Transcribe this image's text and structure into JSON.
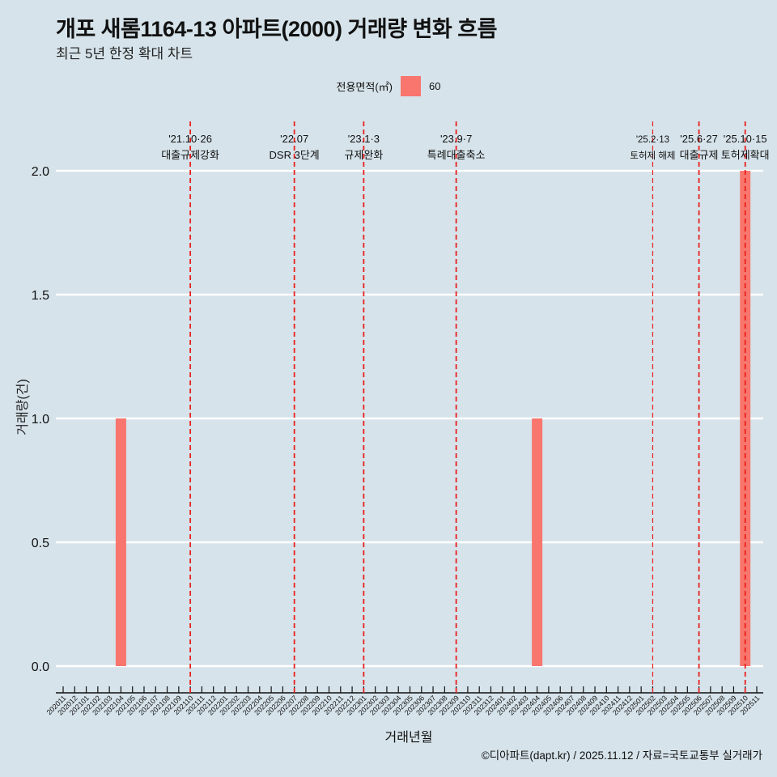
{
  "title": "개포 새롬1164-13 아파트(2000) 거래량 변화 흐름",
  "subtitle": "최근 5년 한정 확대 차트",
  "legend": {
    "title": "전용면적(㎡)",
    "items": [
      {
        "label": "60",
        "color": "#f8766d"
      }
    ]
  },
  "caption": "©디아파트(dapt.kr) / 2025.11.12 / 자료=국토교통부 실거래가",
  "colors": {
    "background": "#d6e3ea",
    "bar": "#f8766d",
    "gridline": "#ffffff",
    "event_line": "#e8201e"
  },
  "chart_data": {
    "type": "bar",
    "title": "개포 새롬1164-13 아파트(2000) 거래량 변화 흐름",
    "subtitle": "최근 5년 한정 확대 차트",
    "xlabel": "거래년월",
    "ylabel": "거래량(건)",
    "ylim": [
      0,
      2.0
    ],
    "yticks": [
      0.0,
      0.5,
      1.0,
      1.5,
      2.0
    ],
    "ytick_labels": [
      "0.0",
      "0.5",
      "1.0",
      "1.5",
      "2.0"
    ],
    "grid": "horizontal",
    "legend_position": "top",
    "categories": [
      "202011",
      "202012",
      "202101",
      "202102",
      "202103",
      "202104",
      "202105",
      "202106",
      "202107",
      "202108",
      "202109",
      "202110",
      "202111",
      "202112",
      "202201",
      "202202",
      "202203",
      "202204",
      "202205",
      "202206",
      "202207",
      "202208",
      "202209",
      "202210",
      "202211",
      "202212",
      "202301",
      "202302",
      "202303",
      "202304",
      "202305",
      "202306",
      "202307",
      "202308",
      "202309",
      "202310",
      "202311",
      "202312",
      "202401",
      "202402",
      "202403",
      "202404",
      "202405",
      "202406",
      "202407",
      "202408",
      "202409",
      "202410",
      "202411",
      "202412",
      "202501",
      "202502",
      "202503",
      "202504",
      "202505",
      "202506",
      "202507",
      "202508",
      "202509",
      "202510",
      "202511"
    ],
    "series": [
      {
        "name": "60",
        "color": "#f8766d",
        "values": [
          0,
          0,
          0,
          0,
          0,
          1,
          0,
          0,
          0,
          0,
          0,
          0,
          0,
          0,
          0,
          0,
          0,
          0,
          0,
          0,
          0,
          0,
          0,
          0,
          0,
          0,
          0,
          0,
          0,
          0,
          0,
          0,
          0,
          0,
          0,
          0,
          0,
          0,
          0,
          0,
          0,
          1,
          0,
          0,
          0,
          0,
          0,
          0,
          0,
          0,
          0,
          0,
          0,
          0,
          0,
          0,
          0,
          0,
          0,
          2,
          0
        ]
      }
    ],
    "annotations": [
      {
        "x": "202110",
        "date": "'21.10·26",
        "label": "대출규제강화"
      },
      {
        "x": "202207",
        "date": "'22.07",
        "label": "DSR 3단계"
      },
      {
        "x": "202301",
        "date": "'23.1·3",
        "label": "규제완화"
      },
      {
        "x": "202309",
        "date": "'23.9·7",
        "label": "특례대출축소"
      },
      {
        "x": "202502",
        "date": "'25.2·13",
        "label": "토허제 해제"
      },
      {
        "x": "202506",
        "date": "'25.6·27",
        "label": "대출규제"
      },
      {
        "x": "202510",
        "date": "'25.10·15",
        "label": "토허제확대"
      }
    ]
  }
}
